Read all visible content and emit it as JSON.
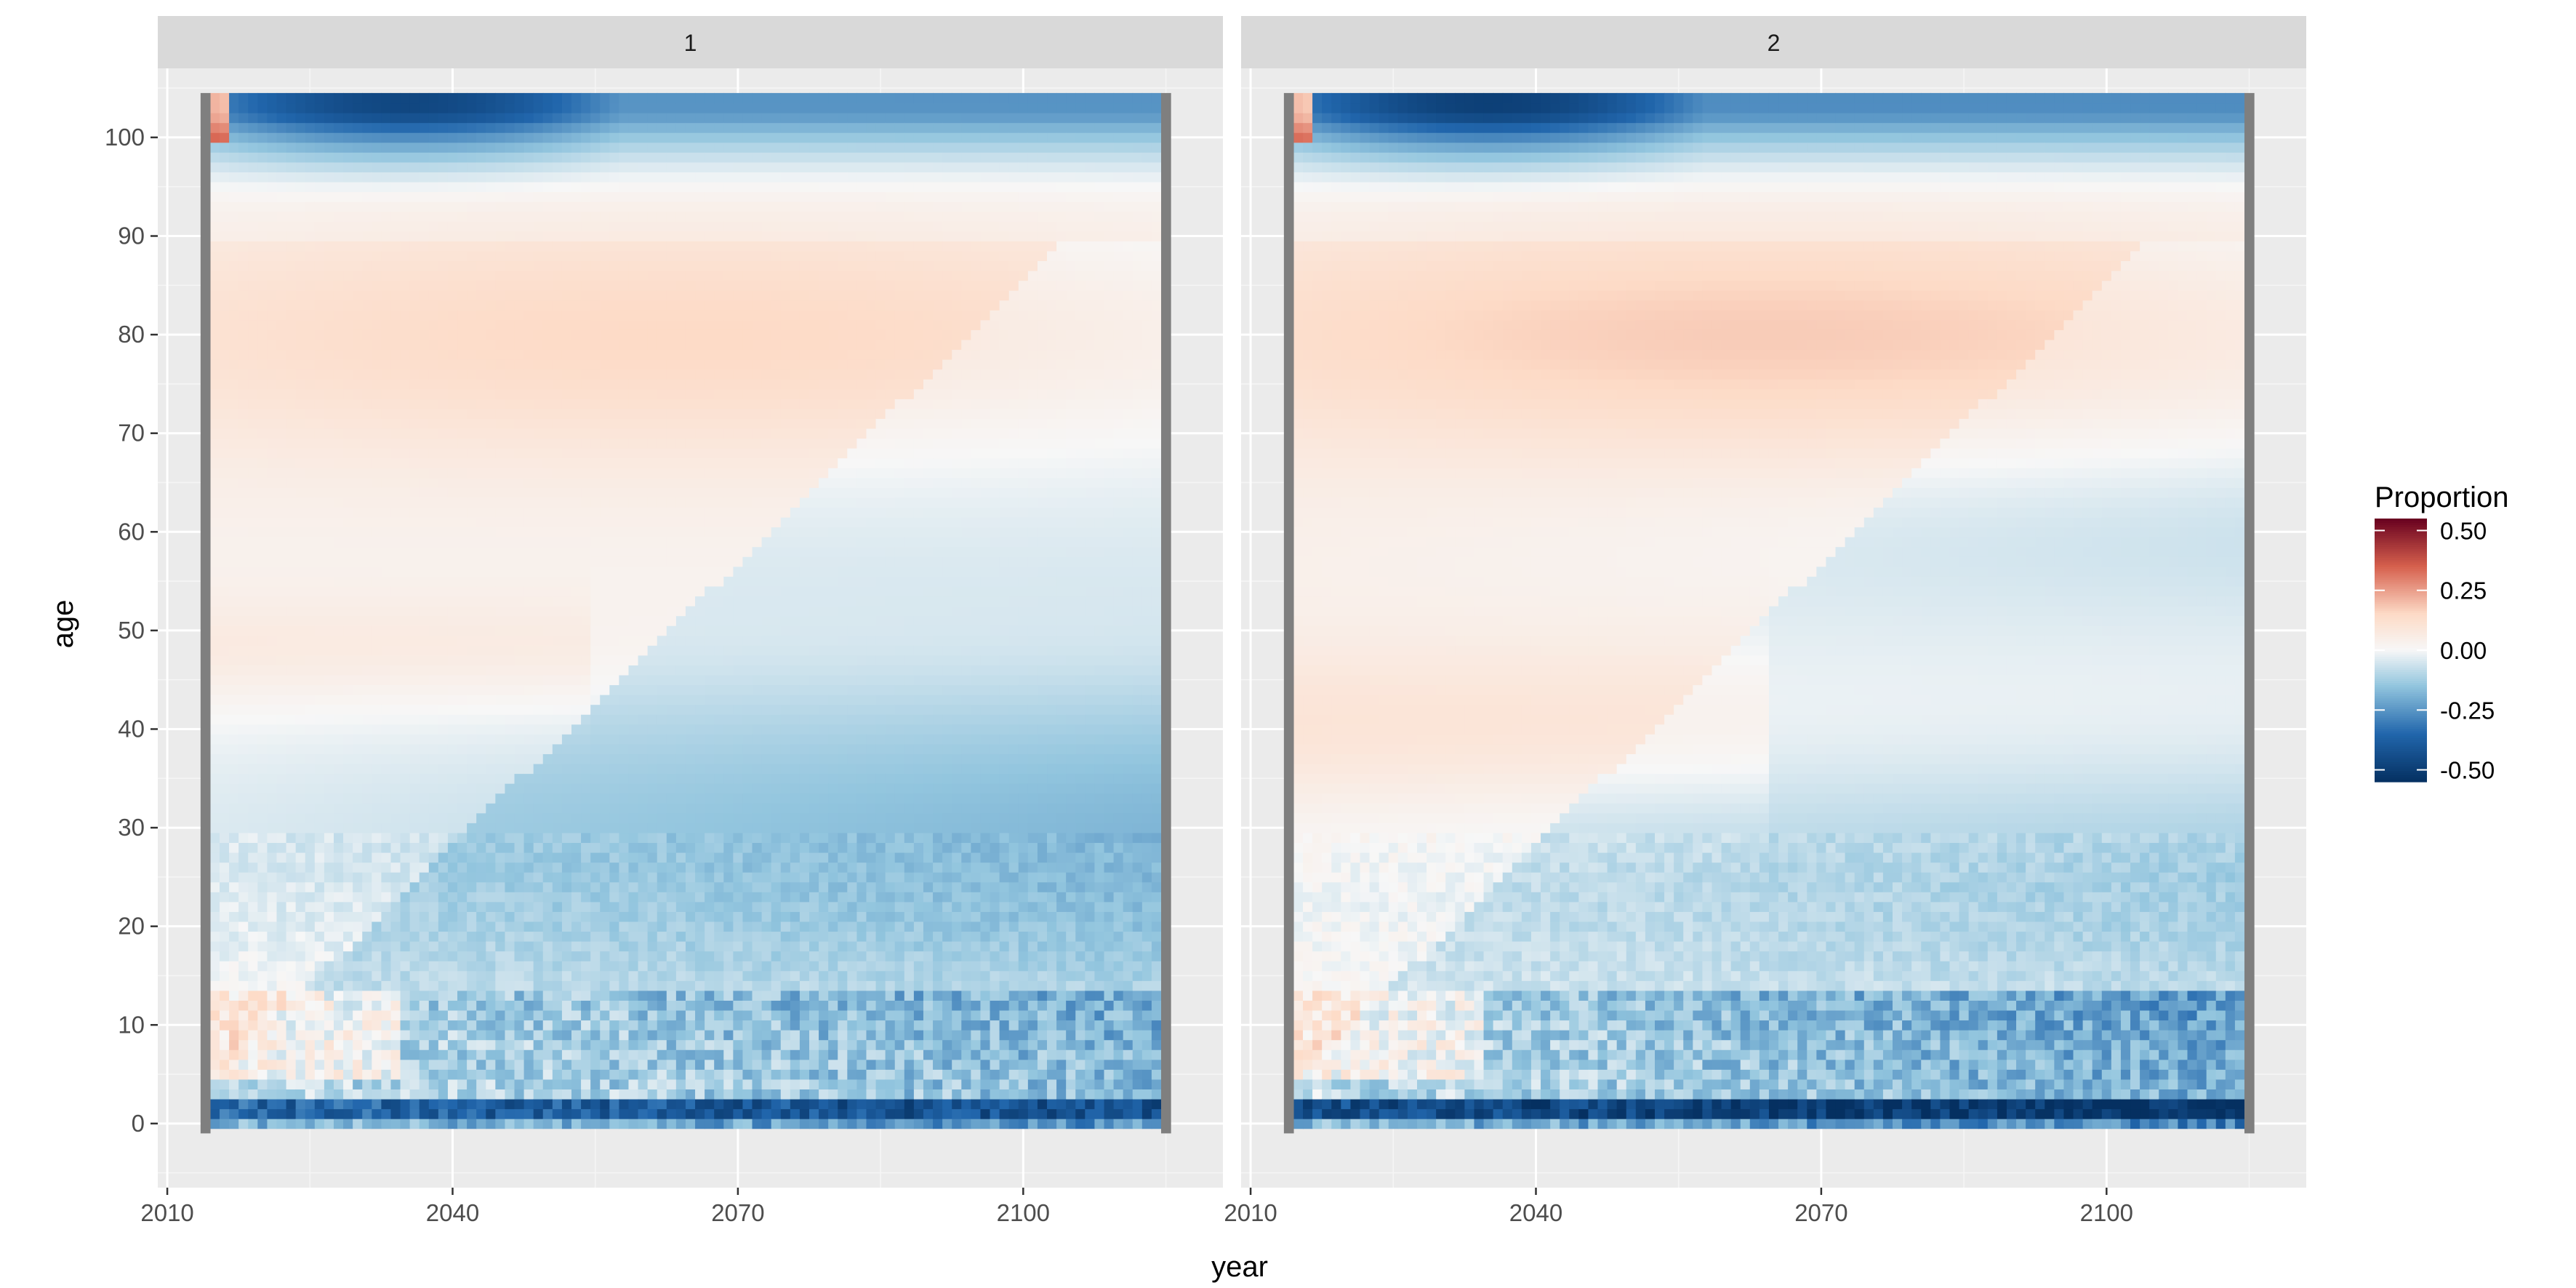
{
  "chart_data": {
    "type": "heatmap",
    "x_label": "year",
    "y_label": "age",
    "x_ticks": [
      2010,
      2040,
      2070,
      2100
    ],
    "y_ticks": [
      0,
      10,
      20,
      30,
      40,
      50,
      60,
      70,
      80,
      90,
      100
    ],
    "x_range": [
      2009,
      2121
    ],
    "y_range": [
      -6.5,
      107
    ],
    "data_year_range": [
      2015,
      2114
    ],
    "data_age_range": [
      0,
      104
    ],
    "grid": true,
    "legend": {
      "title": "Proportion",
      "position": "right",
      "ticks": [
        "0.50",
        "0.25",
        "0.00",
        "-0.25",
        "-0.50"
      ],
      "tick_values": [
        0.5,
        0.25,
        0.0,
        -0.25,
        -0.5
      ],
      "min": -0.55,
      "max": 0.55
    },
    "colors": {
      "neg_dark": "#053061",
      "neg_mid": "#2166ac",
      "neg_light": "#92c5de",
      "neutral": "#f7f7f7",
      "pos_light": "#fddbc7",
      "pos_mid": "#d6604d",
      "pos_dark": "#67001f",
      "na": "#7f7f7f",
      "panel_bg": "#ebebeb",
      "strip_bg": "#d9d9d9"
    },
    "panels": [
      {
        "label": "1",
        "pattern_description_values": {
          "top_band_min": -0.52,
          "upper_pos_peak": 0.12,
          "mid50_pos": 0.07,
          "lower_neg": -0.18,
          "bottom_band": -0.28
        }
      },
      {
        "label": "2",
        "pattern_description_values": {
          "top_band_min": -0.55,
          "upper_pos_peak": 0.14,
          "mid40_pos": 0.09,
          "lower_neg": -0.14,
          "bottom_band": -0.35
        }
      }
    ]
  }
}
